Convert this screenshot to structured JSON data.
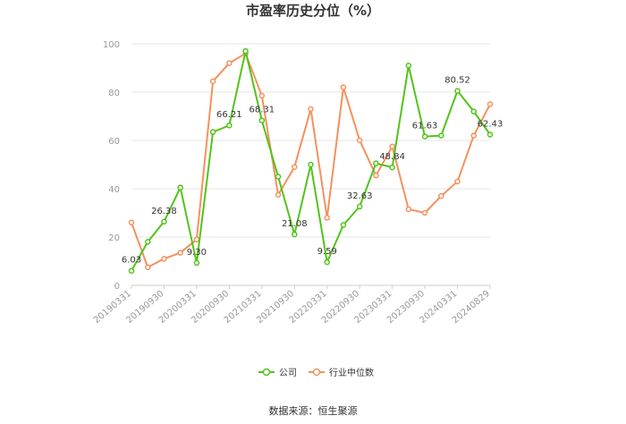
{
  "chart_data": {
    "type": "line",
    "title": "市盈率历史分位（%）",
    "source": "数据来源：恒生聚源",
    "xlabel": "",
    "ylabel": "",
    "ylim": [
      0,
      100
    ],
    "yticks": [
      0,
      20,
      40,
      60,
      80,
      100
    ],
    "grid": true,
    "legend_position": "bottom-center",
    "x_tick_labels": [
      "20190331",
      "20190930",
      "20200331",
      "20200930",
      "20210331",
      "20210930",
      "20220331",
      "20220930",
      "20230331",
      "20230930",
      "20240331",
      "20240829"
    ],
    "x": [
      "20190331",
      "20190630",
      "20190930",
      "20191231",
      "20200331",
      "20200630",
      "20200930",
      "20201231",
      "20210331",
      "20210630",
      "20210930",
      "20211231",
      "20220331",
      "20220630",
      "20220930",
      "20221231",
      "20230331",
      "20230630",
      "20230930",
      "20231231",
      "20240331",
      "20240630",
      "20240829"
    ],
    "series": [
      {
        "name": "公司",
        "color": "#52c41a",
        "values": [
          6.03,
          18,
          26.38,
          40.5,
          9.3,
          63.5,
          66.21,
          97,
          68.31,
          45,
          21.08,
          50,
          9.59,
          25,
          32.63,
          50.5,
          48.84,
          91,
          61.63,
          62,
          80.52,
          72,
          62.43
        ],
        "labels": {
          "0": "6.03",
          "2": "26.38",
          "4": "9.30",
          "6": "66.21",
          "8": "68.31",
          "10": "21.08",
          "12": "9.59",
          "14": "32.63",
          "16": "48.84",
          "18": "61.63",
          "20": "80.52",
          "22": "62.43"
        }
      },
      {
        "name": "行业中位数",
        "color": "#f4915e",
        "values": [
          26,
          7.5,
          11,
          13.5,
          19,
          84.5,
          92,
          96,
          78.5,
          37.5,
          49,
          73,
          28,
          82,
          60,
          45.5,
          57.5,
          31.5,
          30,
          37,
          43,
          62,
          75
        ]
      }
    ]
  }
}
